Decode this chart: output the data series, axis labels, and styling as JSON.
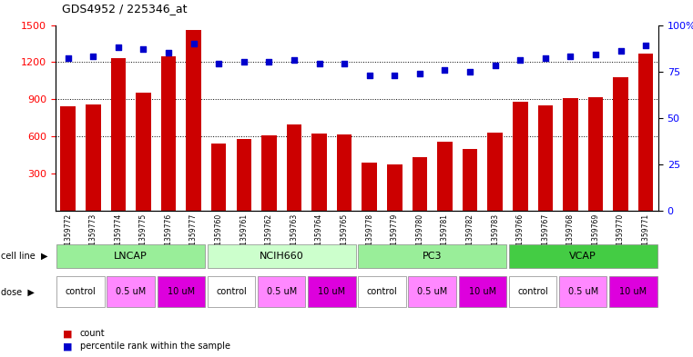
{
  "title": "GDS4952 / 225346_at",
  "samples": [
    "GSM1359772",
    "GSM1359773",
    "GSM1359774",
    "GSM1359775",
    "GSM1359776",
    "GSM1359777",
    "GSM1359760",
    "GSM1359761",
    "GSM1359762",
    "GSM1359763",
    "GSM1359764",
    "GSM1359765",
    "GSM1359778",
    "GSM1359779",
    "GSM1359780",
    "GSM1359781",
    "GSM1359782",
    "GSM1359783",
    "GSM1359766",
    "GSM1359767",
    "GSM1359768",
    "GSM1359769",
    "GSM1359770",
    "GSM1359771"
  ],
  "counts": [
    840,
    855,
    1230,
    950,
    1250,
    1460,
    545,
    580,
    610,
    700,
    620,
    615,
    390,
    370,
    430,
    560,
    500,
    630,
    880,
    850,
    910,
    920,
    1080,
    1270
  ],
  "percentiles": [
    82,
    83,
    88,
    87,
    85,
    90,
    79,
    80,
    80,
    81,
    79,
    79,
    73,
    73,
    74,
    76,
    75,
    78,
    81,
    82,
    83,
    84,
    86,
    89
  ],
  "bar_color": "#cc0000",
  "dot_color": "#0000cc",
  "ylim_left": [
    0,
    1500
  ],
  "ylim_right": [
    0,
    100
  ],
  "yticks_left": [
    300,
    600,
    900,
    1200,
    1500
  ],
  "yticks_right": [
    0,
    25,
    50,
    75,
    100
  ],
  "grid_values": [
    600,
    900,
    1200
  ],
  "bg_color": "#ffffff",
  "cell_line_info": [
    [
      "LNCAP",
      0,
      6,
      "#99ee99"
    ],
    [
      "NCIH660",
      6,
      12,
      "#ccffcc"
    ],
    [
      "PC3",
      12,
      18,
      "#99ee99"
    ],
    [
      "VCAP",
      18,
      24,
      "#44cc44"
    ]
  ],
  "dose_info": [
    [
      "control",
      0,
      2,
      "#ffffff"
    ],
    [
      "0.5 uM",
      2,
      4,
      "#ff88ff"
    ],
    [
      "10 uM",
      4,
      6,
      "#dd00dd"
    ],
    [
      "control",
      6,
      8,
      "#ffffff"
    ],
    [
      "0.5 uM",
      8,
      10,
      "#ff88ff"
    ],
    [
      "10 uM",
      10,
      12,
      "#dd00dd"
    ],
    [
      "control",
      12,
      14,
      "#ffffff"
    ],
    [
      "0.5 uM",
      14,
      16,
      "#ff88ff"
    ],
    [
      "10 uM",
      16,
      18,
      "#dd00dd"
    ],
    [
      "control",
      18,
      20,
      "#ffffff"
    ],
    [
      "0.5 uM",
      20,
      22,
      "#ff88ff"
    ],
    [
      "10 uM",
      22,
      24,
      "#dd00dd"
    ]
  ]
}
